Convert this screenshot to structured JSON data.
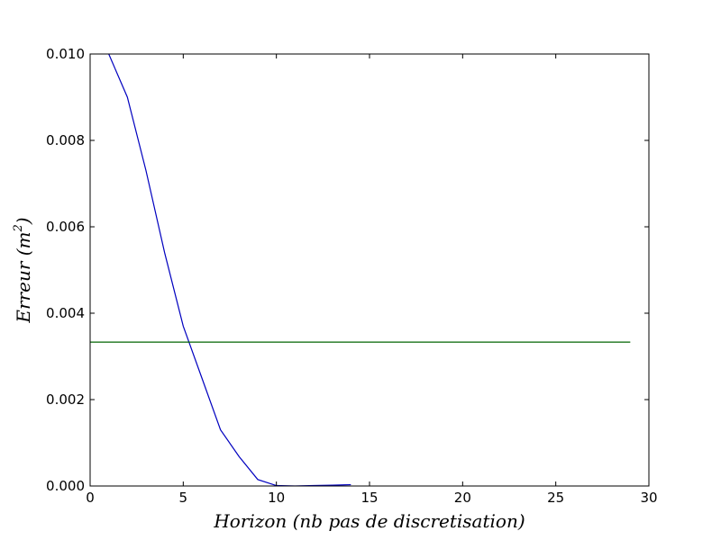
{
  "chart_data": {
    "type": "line",
    "title": "",
    "xlabel": "Horizon (nb pas de discretisation)",
    "ylabel_main": "Erreur (m",
    "ylabel_sup": "2",
    "ylabel_close": ")",
    "xlim": [
      0,
      30
    ],
    "ylim": [
      0,
      0.01
    ],
    "xticks": [
      0,
      5,
      10,
      15,
      20,
      25,
      30
    ],
    "xtick_labels": [
      "0",
      "5",
      "10",
      "15",
      "20",
      "25",
      "30"
    ],
    "yticks": [
      0,
      0.002,
      0.004,
      0.006,
      0.008,
      0.01
    ],
    "ytick_labels": [
      "0.000",
      "0.002",
      "0.004",
      "0.006",
      "0.008",
      "0.010"
    ],
    "grid": false,
    "series": [
      {
        "color": "#0000bf",
        "x": [
          1,
          2,
          3,
          4,
          5,
          6,
          7,
          8,
          9,
          10,
          11,
          12,
          13,
          14
        ],
        "y": [
          0.01,
          0.009,
          0.0073,
          0.0054,
          0.0037,
          0.0025,
          0.0013,
          0.00068,
          0.00015,
          1e-05,
          0.0,
          1e-05,
          2e-05,
          3e-05
        ]
      },
      {
        "color": "#006400",
        "x": [
          0,
          29
        ],
        "y": [
          0.00333,
          0.00333
        ]
      }
    ]
  }
}
